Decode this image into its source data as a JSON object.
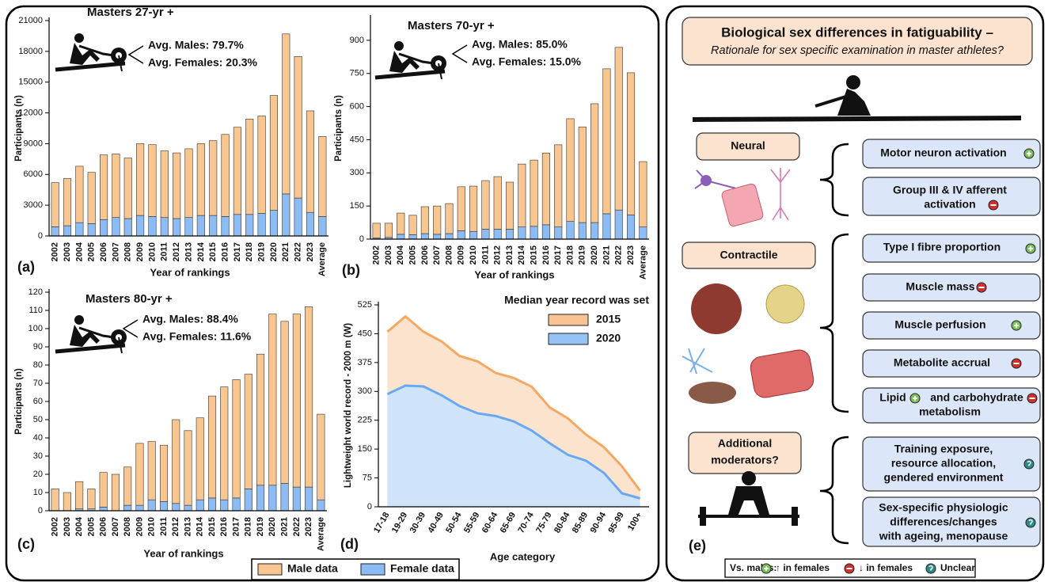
{
  "chart_data": [
    {
      "type": "bar",
      "title": "Masters 27-yr +",
      "panel_label": "(a)",
      "annotations": [
        "Avg. Males: 79.7%",
        "Avg. Females: 20.3%"
      ],
      "x_label": "Year of rankings",
      "y_label": "Participants (n)",
      "categories": [
        "2002",
        "2003",
        "2004",
        "2005",
        "2006",
        "2007",
        "2008",
        "2009",
        "2010",
        "2011",
        "2012",
        "2013",
        "2014",
        "2015",
        "2016",
        "2017",
        "2018",
        "2019",
        "2020",
        "2021",
        "2022",
        "2023",
        "Average"
      ],
      "series": [
        {
          "name": "Female data",
          "color": "#8dbcf5",
          "values": [
            900,
            1000,
            1300,
            1200,
            1600,
            1800,
            1700,
            2000,
            1900,
            1800,
            1700,
            1800,
            2000,
            2000,
            1900,
            2100,
            2100,
            2200,
            2500,
            4100,
            3700,
            2300,
            1900
          ]
        },
        {
          "name": "Male data",
          "color": "#f8c690",
          "values": [
            4300,
            4600,
            5500,
            5000,
            6300,
            6200,
            5900,
            7000,
            7000,
            6500,
            6400,
            6700,
            7000,
            7300,
            8000,
            8500,
            9300,
            9500,
            11200,
            15600,
            13800,
            9900,
            7800
          ]
        }
      ],
      "ylim": [
        0,
        21000
      ],
      "yticks": [
        0,
        3000,
        6000,
        9000,
        12000,
        15000,
        18000,
        21000
      ]
    },
    {
      "type": "bar",
      "title": "Masters 70-yr +",
      "panel_label": "(b)",
      "annotations": [
        "Avg. Males: 85.0%",
        "Avg. Females: 15.0%"
      ],
      "x_label": "Year of rankings",
      "y_label": "Participants (n)",
      "categories": [
        "2002",
        "2003",
        "2004",
        "2005",
        "2006",
        "2007",
        "2008",
        "2009",
        "2010",
        "2011",
        "2012",
        "2013",
        "2014",
        "2015",
        "2016",
        "2017",
        "2018",
        "2019",
        "2020",
        "2021",
        "2022",
        "2023",
        "Average"
      ],
      "series": [
        {
          "color": "#8dbcf5",
          "values": [
            5,
            8,
            22,
            20,
            25,
            22,
            25,
            38,
            35,
            45,
            45,
            45,
            55,
            58,
            65,
            55,
            80,
            75,
            75,
            115,
            132,
            110,
            55
          ]
        },
        {
          "color": "#f8c690",
          "values": [
            67,
            64,
            96,
            88,
            122,
            128,
            136,
            199,
            205,
            220,
            238,
            213,
            285,
            300,
            325,
            372,
            465,
            433,
            538,
            656,
            736,
            643,
            296
          ]
        }
      ],
      "ylim": [
        0,
        1000
      ],
      "yticks": [
        0,
        150,
        300,
        450,
        600,
        750,
        900
      ]
    },
    {
      "type": "bar",
      "title": "Masters 80-yr +",
      "panel_label": "(c)",
      "annotations": [
        "Avg. Males: 88.4%",
        "Avg. Females: 11.6%"
      ],
      "x_label": "Year of rankings",
      "y_label": "Participants (n)",
      "categories": [
        "2002",
        "2003",
        "2004",
        "2005",
        "2006",
        "2007",
        "2008",
        "2009",
        "2010",
        "2011",
        "2012",
        "2013",
        "2014",
        "2015",
        "2016",
        "2017",
        "2018",
        "2019",
        "2020",
        "2021",
        "2022",
        "2023",
        "Average"
      ],
      "series": [
        {
          "color": "#8dbcf5",
          "values": [
            0,
            0,
            1,
            1,
            2,
            0,
            3,
            3,
            6,
            5,
            4,
            3,
            6,
            7,
            6,
            7,
            12,
            14,
            14,
            15,
            13,
            13,
            6
          ]
        },
        {
          "color": "#f8c690",
          "values": [
            12,
            10,
            15,
            11,
            19,
            20,
            21,
            34,
            32,
            31,
            46,
            41,
            45,
            56,
            62,
            65,
            63,
            72,
            94,
            89,
            95,
            99,
            47
          ]
        }
      ],
      "ylim": [
        0,
        120
      ],
      "yticks": [
        0,
        10,
        20,
        30,
        40,
        50,
        60,
        70,
        80,
        90,
        100,
        110,
        120
      ]
    },
    {
      "type": "area",
      "panel_label": "(d)",
      "legend_title": "Median year record was set",
      "x_label": "Age category",
      "y_label": "Lightweight world record - 2000 m (W)",
      "categories": [
        "17-18",
        "19-29",
        "30-39",
        "40-49",
        "50-54",
        "55-59",
        "60-64",
        "65-69",
        "70-74",
        "75-79",
        "80-84",
        "85-89",
        "90-94",
        "95-99",
        "100+"
      ],
      "series": [
        {
          "name": "2015",
          "color": "#f5a862",
          "values": [
            455,
            495,
            455,
            430,
            392,
            378,
            348,
            335,
            312,
            258,
            230,
            188,
            155,
            105,
            42
          ]
        },
        {
          "name": "2020",
          "color": "#6aa9ef",
          "values": [
            293,
            315,
            313,
            290,
            262,
            243,
            236,
            222,
            198,
            165,
            135,
            120,
            88,
            35,
            22
          ]
        }
      ],
      "ylim": [
        0,
        525
      ],
      "yticks": [
        0,
        75,
        150,
        225,
        300,
        375,
        450,
        525
      ]
    }
  ],
  "panel_e": {
    "label": "(e)",
    "title": "Biological sex differences in fatiguability –",
    "subtitle": "Rationale for sex specific examination in master athletes?",
    "groups": [
      {
        "label": [
          "Neural"
        ],
        "items": [
          [
            "Motor neuron activation"
          ],
          [
            "Group III & IV afferent",
            "activation"
          ]
        ]
      },
      {
        "label": [
          "Contractile"
        ],
        "items": [
          [
            "Type I fibre proportion"
          ],
          [
            "Muscle mass"
          ],
          [
            "Muscle perfusion"
          ],
          [
            "Metabolite accrual"
          ],
          [
            "Lipid",
            "and carbohydrate",
            "metabolism"
          ]
        ]
      },
      {
        "label": [
          "Additional",
          "moderators?"
        ],
        "items": [
          [
            "Training exposure,",
            "resource allocation,",
            "gendered environment"
          ],
          [
            "Sex-specific physiologic",
            "differences/changes",
            "with ageing, menopause"
          ]
        ]
      }
    ],
    "key": {
      "title": "Vs. males:",
      "increase": "↑ in females",
      "decrease": "↓ in females",
      "unclear": "Unclear"
    }
  }
}
